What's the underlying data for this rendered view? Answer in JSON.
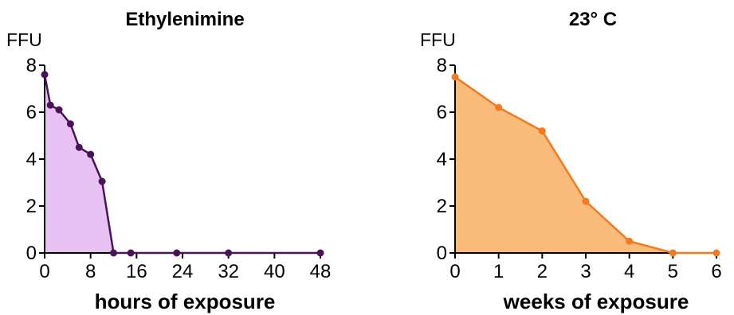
{
  "chart_data": [
    {
      "type": "area",
      "title": "Ethylenimine",
      "ylabel": "FFU",
      "xlabel": "hours of exposure",
      "x": [
        0,
        1,
        2.5,
        4.5,
        6,
        8,
        10,
        12,
        15,
        23,
        32,
        48
      ],
      "y": [
        7.6,
        6.3,
        6.1,
        5.5,
        4.5,
        4.2,
        3.05,
        0,
        0,
        0,
        0,
        0
      ],
      "xlim": [
        0,
        48
      ],
      "ylim": [
        0,
        8
      ],
      "xticks": [
        0,
        8,
        16,
        24,
        32,
        40,
        48
      ],
      "yticks": [
        0,
        2,
        4,
        6,
        8
      ],
      "grid": false,
      "colors": {
        "line": "#4a1257",
        "fill": "#e7c2f2"
      }
    },
    {
      "type": "area",
      "title": "23° C",
      "ylabel": "FFU",
      "xlabel": "weeks of exposure",
      "x": [
        0,
        1,
        2,
        3,
        4,
        5,
        6
      ],
      "y": [
        7.5,
        6.2,
        5.2,
        2.2,
        0.5,
        0,
        0
      ],
      "xlim": [
        0,
        6
      ],
      "ylim": [
        0,
        8
      ],
      "xticks": [
        0,
        1,
        2,
        3,
        4,
        5,
        6
      ],
      "yticks": [
        0,
        2,
        4,
        6,
        8
      ],
      "grid": false,
      "colors": {
        "line": "#f47a20",
        "fill": "#f8bb7a"
      }
    }
  ]
}
